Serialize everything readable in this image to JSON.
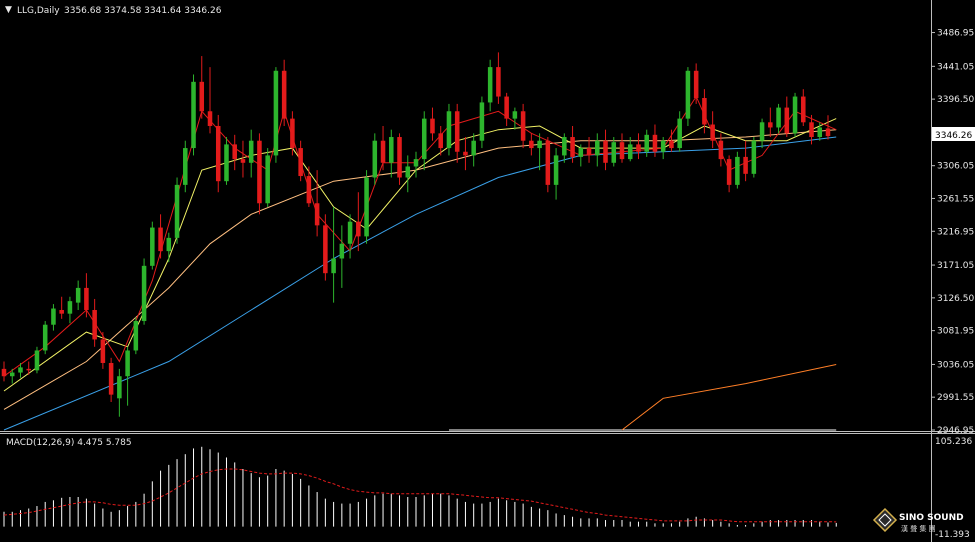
{
  "header": {
    "symbol": "LLG,Daily",
    "ohlc": "3356.68 3374.58 3341.64 3346.26"
  },
  "price_axis": {
    "ticks": [
      "3486.95",
      "3441.05",
      "3396.50",
      "3351.95",
      "3306.05",
      "3261.55",
      "3216.95",
      "3171.05",
      "3126.50",
      "3081.95",
      "3036.05",
      "2991.55",
      "2946.95"
    ],
    "last_price": "3346.26"
  },
  "macd_panel": {
    "label": "MACD(12,26,9) 4.475 5.785",
    "top_tick": "105.236",
    "bottom_tick": "-11.393"
  },
  "logo": {
    "line1": "SINO SOUND",
    "line2": "漢 聲 集 團",
    "icon": "diamond-logo-icon"
  },
  "colors": {
    "background": "#000000",
    "bull": "#2db52d",
    "bear": "#e31b1b",
    "ma5": "#e31b1b",
    "ma10": "#f2f266",
    "ma20": "#ffbf80",
    "ma30": "#3aa0e8",
    "ma60": "#ffffff",
    "ma120": "#ff7f27",
    "macd_hist": "#ffffff",
    "macd_signal": "#e31b1b",
    "axis_text": "#e8e8e8"
  },
  "chart_data": {
    "type": "candlestick",
    "ylim": [
      2946.95,
      3504
    ],
    "candles": [
      [
        3030,
        3040,
        3013,
        3020
      ],
      [
        3020,
        3030,
        3010,
        3025
      ],
      [
        3025,
        3038,
        3018,
        3032
      ],
      [
        3030,
        3040,
        3022,
        3028
      ],
      [
        3028,
        3060,
        3024,
        3055
      ],
      [
        3055,
        3095,
        3050,
        3090
      ],
      [
        3090,
        3118,
        3082,
        3112
      ],
      [
        3110,
        3128,
        3098,
        3105
      ],
      [
        3105,
        3128,
        3092,
        3122
      ],
      [
        3120,
        3150,
        3110,
        3140
      ],
      [
        3140,
        3160,
        3100,
        3110
      ],
      [
        3110,
        3125,
        3060,
        3070
      ],
      [
        3070,
        3080,
        3030,
        3038
      ],
      [
        3038,
        3045,
        2985,
        2995
      ],
      [
        2990,
        3030,
        2965,
        3020
      ],
      [
        3020,
        3060,
        2980,
        3055
      ],
      [
        3055,
        3100,
        3050,
        3095
      ],
      [
        3095,
        3180,
        3090,
        3170
      ],
      [
        3170,
        3230,
        3165,
        3222
      ],
      [
        3222,
        3240,
        3180,
        3190
      ],
      [
        3190,
        3215,
        3175,
        3208
      ],
      [
        3208,
        3290,
        3200,
        3280
      ],
      [
        3280,
        3340,
        3270,
        3330
      ],
      [
        3330,
        3430,
        3320,
        3420
      ],
      [
        3420,
        3455,
        3370,
        3380
      ],
      [
        3380,
        3440,
        3350,
        3360
      ],
      [
        3360,
        3375,
        3270,
        3285
      ],
      [
        3285,
        3345,
        3280,
        3335
      ],
      [
        3335,
        3348,
        3300,
        3315
      ],
      [
        3315,
        3340,
        3290,
        3310
      ],
      [
        3310,
        3355,
        3290,
        3340
      ],
      [
        3340,
        3350,
        3240,
        3255
      ],
      [
        3255,
        3330,
        3250,
        3320
      ],
      [
        3320,
        3440,
        3310,
        3435
      ],
      [
        3435,
        3450,
        3360,
        3370
      ],
      [
        3370,
        3380,
        3320,
        3330
      ],
      [
        3330,
        3340,
        3285,
        3292
      ],
      [
        3292,
        3305,
        3250,
        3255
      ],
      [
        3255,
        3300,
        3210,
        3225
      ],
      [
        3225,
        3240,
        3150,
        3160
      ],
      [
        3160,
        3250,
        3120,
        3180
      ],
      [
        3180,
        3225,
        3140,
        3200
      ],
      [
        3200,
        3240,
        3180,
        3230
      ],
      [
        3230,
        3270,
        3190,
        3210
      ],
      [
        3210,
        3300,
        3200,
        3290
      ],
      [
        3290,
        3350,
        3280,
        3340
      ],
      [
        3340,
        3360,
        3300,
        3310
      ],
      [
        3310,
        3355,
        3290,
        3345
      ],
      [
        3345,
        3350,
        3280,
        3290
      ],
      [
        3290,
        3320,
        3270,
        3305
      ],
      [
        3305,
        3325,
        3290,
        3315
      ],
      [
        3315,
        3380,
        3300,
        3370
      ],
      [
        3370,
        3385,
        3340,
        3350
      ],
      [
        3350,
        3360,
        3320,
        3330
      ],
      [
        3330,
        3390,
        3320,
        3380
      ],
      [
        3380,
        3390,
        3310,
        3325
      ],
      [
        3325,
        3345,
        3300,
        3320
      ],
      [
        3320,
        3350,
        3305,
        3340
      ],
      [
        3340,
        3400,
        3330,
        3392
      ],
      [
        3392,
        3450,
        3380,
        3440
      ],
      [
        3440,
        3460,
        3390,
        3400
      ],
      [
        3400,
        3405,
        3360,
        3370
      ],
      [
        3370,
        3385,
        3355,
        3380
      ],
      [
        3380,
        3390,
        3330,
        3340
      ],
      [
        3340,
        3350,
        3320,
        3330
      ],
      [
        3330,
        3350,
        3300,
        3340
      ],
      [
        3340,
        3345,
        3270,
        3280
      ],
      [
        3280,
        3330,
        3260,
        3320
      ],
      [
        3320,
        3350,
        3310,
        3345
      ],
      [
        3345,
        3360,
        3310,
        3318
      ],
      [
        3318,
        3335,
        3305,
        3330
      ],
      [
        3330,
        3345,
        3310,
        3320
      ],
      [
        3320,
        3350,
        3305,
        3340
      ],
      [
        3340,
        3355,
        3300,
        3310
      ],
      [
        3310,
        3345,
        3305,
        3338
      ],
      [
        3338,
        3350,
        3310,
        3315
      ],
      [
        3315,
        3345,
        3312,
        3335
      ],
      [
        3335,
        3350,
        3315,
        3325
      ],
      [
        3325,
        3355,
        3318,
        3348
      ],
      [
        3348,
        3362,
        3318,
        3325
      ],
      [
        3325,
        3345,
        3315,
        3340
      ],
      [
        3340,
        3355,
        3325,
        3330
      ],
      [
        3330,
        3380,
        3325,
        3370
      ],
      [
        3370,
        3440,
        3360,
        3435
      ],
      [
        3435,
        3445,
        3390,
        3398
      ],
      [
        3398,
        3410,
        3350,
        3362
      ],
      [
        3362,
        3380,
        3330,
        3340
      ],
      [
        3340,
        3350,
        3305,
        3315
      ],
      [
        3315,
        3320,
        3270,
        3280
      ],
      [
        3280,
        3325,
        3275,
        3318
      ],
      [
        3318,
        3340,
        3285,
        3295
      ],
      [
        3295,
        3345,
        3290,
        3340
      ],
      [
        3340,
        3370,
        3330,
        3365
      ],
      [
        3365,
        3385,
        3345,
        3358
      ],
      [
        3358,
        3390,
        3350,
        3385
      ],
      [
        3385,
        3400,
        3345,
        3350
      ],
      [
        3350,
        3405,
        3345,
        3400
      ],
      [
        3400,
        3410,
        3360,
        3365
      ],
      [
        3365,
        3375,
        3335,
        3345
      ],
      [
        3345,
        3365,
        3340,
        3358
      ],
      [
        3356.68,
        3374.58,
        3341.64,
        3346.26
      ]
    ],
    "moving_averages": [
      {
        "color": "#ffffff",
        "values": [
          [
            54,
            2946
          ],
          [
            82,
            2946
          ],
          [
            99,
            2946
          ],
          [
            101,
            2946
          ]
        ]
      },
      {
        "color": "#ff7f27",
        "values": [
          [
            75,
            2946
          ],
          [
            80,
            2990
          ],
          [
            90,
            3010
          ],
          [
            101,
            3036
          ]
        ]
      },
      {
        "color": "#3aa0e8",
        "values": [
          [
            0,
            2946
          ],
          [
            20,
            3040
          ],
          [
            30,
            3110
          ],
          [
            40,
            3180
          ],
          [
            50,
            3240
          ],
          [
            60,
            3290
          ],
          [
            70,
            3320
          ],
          [
            80,
            3325
          ],
          [
            90,
            3330
          ],
          [
            101,
            3345
          ]
        ]
      },
      {
        "color": "#ffbf80",
        "values": [
          [
            0,
            2975
          ],
          [
            10,
            3040
          ],
          [
            20,
            3140
          ],
          [
            25,
            3200
          ],
          [
            30,
            3240
          ],
          [
            40,
            3285
          ],
          [
            50,
            3300
          ],
          [
            60,
            3330
          ],
          [
            70,
            3340
          ],
          [
            80,
            3340
          ],
          [
            90,
            3345
          ],
          [
            101,
            3355
          ]
        ]
      },
      {
        "color": "#f2f266",
        "values": [
          [
            0,
            3000
          ],
          [
            10,
            3080
          ],
          [
            15,
            3060
          ],
          [
            20,
            3180
          ],
          [
            24,
            3300
          ],
          [
            30,
            3320
          ],
          [
            35,
            3330
          ],
          [
            40,
            3250
          ],
          [
            44,
            3220
          ],
          [
            50,
            3300
          ],
          [
            55,
            3340
          ],
          [
            60,
            3355
          ],
          [
            65,
            3360
          ],
          [
            70,
            3330
          ],
          [
            80,
            3330
          ],
          [
            85,
            3360
          ],
          [
            90,
            3340
          ],
          [
            95,
            3340
          ],
          [
            101,
            3370
          ]
        ]
      },
      {
        "color": "#e31b1b",
        "values": [
          [
            0,
            3020
          ],
          [
            5,
            3060
          ],
          [
            10,
            3110
          ],
          [
            14,
            3040
          ],
          [
            18,
            3150
          ],
          [
            24,
            3380
          ],
          [
            28,
            3330
          ],
          [
            32,
            3300
          ],
          [
            34,
            3380
          ],
          [
            38,
            3240
          ],
          [
            42,
            3190
          ],
          [
            46,
            3310
          ],
          [
            50,
            3310
          ],
          [
            54,
            3360
          ],
          [
            60,
            3380
          ],
          [
            64,
            3350
          ],
          [
            70,
            3320
          ],
          [
            80,
            3330
          ],
          [
            84,
            3400
          ],
          [
            88,
            3300
          ],
          [
            92,
            3320
          ],
          [
            96,
            3380
          ],
          [
            101,
            3355
          ]
        ]
      }
    ],
    "macd": {
      "ylim": [
        -11.393,
        105.236
      ],
      "histogram": [
        18,
        18,
        20,
        22,
        25,
        30,
        32,
        35,
        36,
        36,
        34,
        28,
        22,
        18,
        20,
        25,
        30,
        40,
        55,
        68,
        75,
        82,
        88,
        95,
        97,
        94,
        90,
        84,
        78,
        70,
        65,
        60,
        62,
        70,
        68,
        64,
        58,
        50,
        42,
        34,
        30,
        28,
        28,
        30,
        34,
        38,
        40,
        40,
        38,
        36,
        36,
        38,
        40,
        40,
        38,
        34,
        30,
        28,
        28,
        30,
        34,
        32,
        30,
        28,
        24,
        22,
        20,
        16,
        14,
        12,
        10,
        10,
        10,
        8,
        8,
        8,
        6,
        6,
        6,
        4,
        4,
        4,
        6,
        10,
        12,
        10,
        8,
        6,
        4,
        2,
        2,
        4,
        6,
        8,
        8,
        8,
        8,
        8,
        8,
        6,
        5,
        4.475
      ],
      "signal": [
        14,
        15,
        16,
        17,
        19,
        21,
        23,
        25,
        27,
        29,
        30,
        30,
        29,
        27,
        26,
        26,
        26,
        28,
        31,
        36,
        41,
        47,
        53,
        59,
        64,
        67,
        69,
        70,
        70,
        69,
        67,
        65,
        64,
        64,
        65,
        65,
        64,
        62,
        59,
        55,
        52,
        48,
        45,
        43,
        42,
        41,
        41,
        40,
        40,
        40,
        40,
        40,
        40,
        40,
        40,
        39,
        38,
        37,
        36,
        35,
        35,
        34,
        33,
        32,
        31,
        29,
        27,
        25,
        23,
        21,
        19,
        17,
        16,
        14,
        13,
        12,
        11,
        10,
        9,
        8,
        7,
        7,
        7,
        7,
        8,
        8,
        8,
        8,
        7,
        6,
        6,
        6,
        6,
        6,
        6,
        6,
        6,
        6,
        6,
        6,
        6,
        5.785
      ]
    }
  }
}
